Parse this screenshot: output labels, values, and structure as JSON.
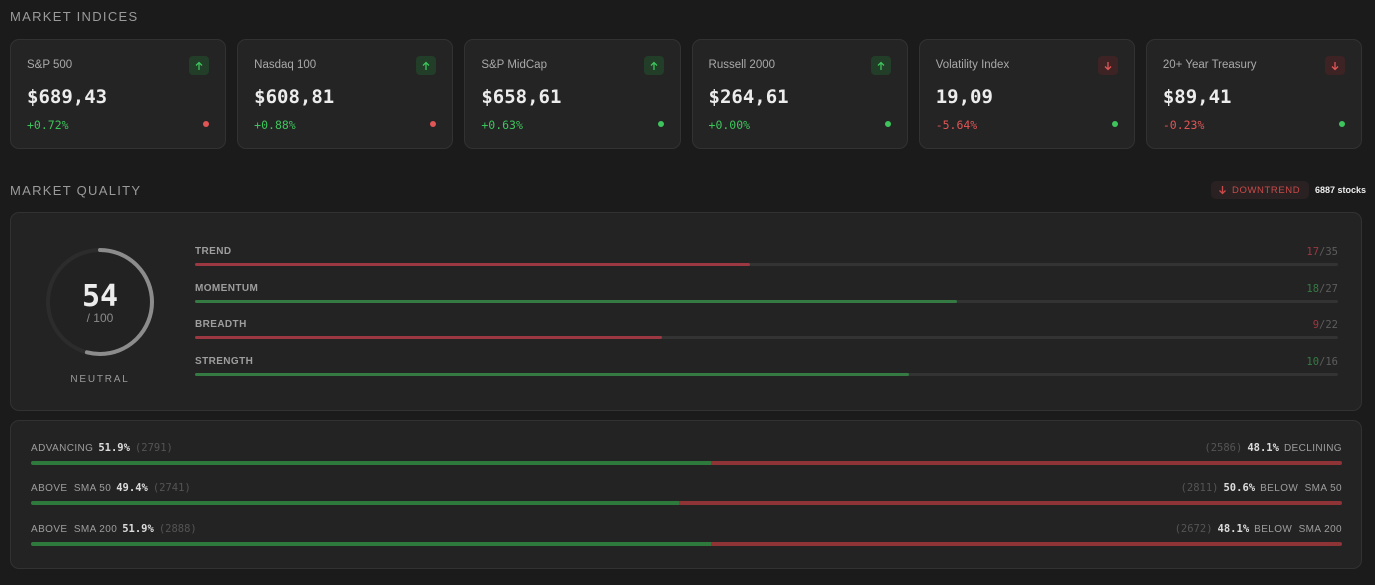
{
  "indices_title": "MARKET INDICES",
  "indices": [
    {
      "name": "S&P 500",
      "price": "$689,43",
      "change": "+0.72%",
      "direction": "up",
      "status": "red"
    },
    {
      "name": "Nasdaq 100",
      "price": "$608,81",
      "change": "+0.88%",
      "direction": "up",
      "status": "red"
    },
    {
      "name": "S&P MidCap",
      "price": "$658,61",
      "change": "+0.63%",
      "direction": "up",
      "status": "green"
    },
    {
      "name": "Russell 2000",
      "price": "$264,61",
      "change": "+0.00%",
      "direction": "up",
      "status": "green"
    },
    {
      "name": "Volatility Index",
      "price": "19,09",
      "change": "-5.64%",
      "direction": "down",
      "status": "green"
    },
    {
      "name": "20+ Year Treasury",
      "price": "$89,41",
      "change": "-0.23%",
      "direction": "down",
      "status": "green"
    }
  ],
  "quality_title": "MARKET QUALITY",
  "trend_badge": "DOWNTREND",
  "stocks_count": "6887 stocks",
  "score": {
    "value": "54",
    "max": "/ 100",
    "fraction": 0.54,
    "label": "NEUTRAL"
  },
  "metrics": [
    {
      "label": "TREND",
      "score": "17",
      "total": "/35",
      "fraction": 0.486,
      "color": "red"
    },
    {
      "label": "MOMENTUM",
      "score": "18",
      "total": "/27",
      "fraction": 0.667,
      "color": "green"
    },
    {
      "label": "BREADTH",
      "score": "9",
      "total": "/22",
      "fraction": 0.409,
      "color": "red"
    },
    {
      "label": "STRENGTH",
      "score": "10",
      "total": "/16",
      "fraction": 0.625,
      "color": "green"
    }
  ],
  "breadth": [
    {
      "left_label": "ADVANCING",
      "left_pct": "51.9%",
      "left_count": "(2791)",
      "right_count": "(2586)",
      "right_pct": "48.1%",
      "right_label": "DECLINING",
      "fraction": 0.519
    },
    {
      "left_label": "ABOVE  SMA 50",
      "left_pct": "49.4%",
      "left_count": "(2741)",
      "right_count": "(2811)",
      "right_pct": "50.6%",
      "right_label": "BELOW  SMA 50",
      "fraction": 0.494
    },
    {
      "left_label": "ABOVE  SMA 200",
      "left_pct": "51.9%",
      "left_count": "(2888)",
      "right_count": "(2672)",
      "right_pct": "48.1%",
      "right_label": "BELOW  SMA 200",
      "fraction": 0.519
    }
  ],
  "colors": {
    "positive": "#3ec45d",
    "negative": "#e05555",
    "bar_green": "#357a43",
    "bar_red": "#9b3841"
  },
  "icons": {
    "up": "arrow-up-icon",
    "down": "arrow-down-icon"
  }
}
